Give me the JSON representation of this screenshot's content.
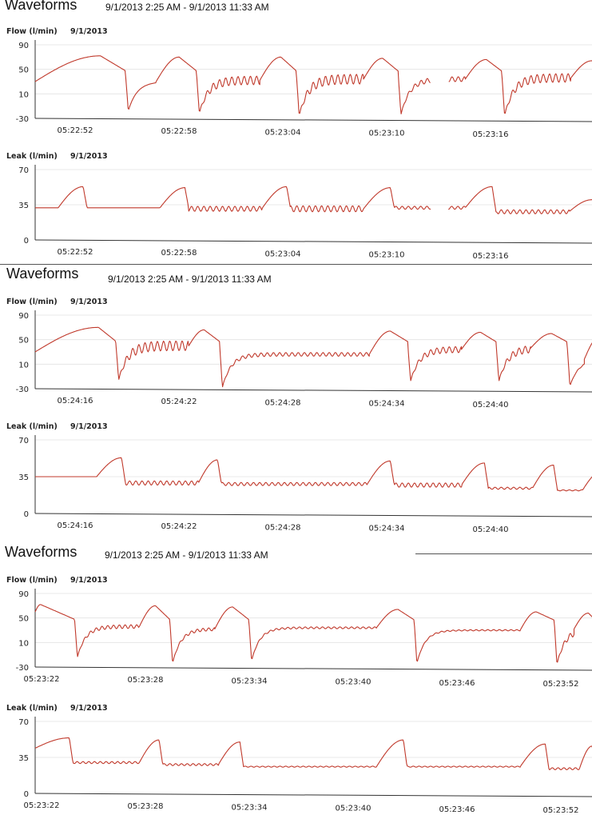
{
  "accent_color": "#c0392b",
  "pages": [
    {
      "title": "Waveforms",
      "range": "9/1/2013 2:25 AM - 9/1/2013 11:33 AM",
      "flow": {
        "label": "Flow (l/min)",
        "date": "9/1/2013",
        "yticks": [
          "90",
          "50",
          "10",
          "-30"
        ],
        "xticks": [
          "05:22:52",
          "05:22:58",
          "05:23:04",
          "05:23:10",
          "05:23:16"
        ]
      },
      "leak": {
        "label": "Leak (l/min)",
        "date": "9/1/2013",
        "yticks": [
          "70",
          "35",
          "0"
        ],
        "xticks": [
          "05:22:52",
          "05:22:58",
          "05:23:04",
          "05:23:10",
          "05:23:16"
        ]
      }
    },
    {
      "title": "Waveforms",
      "range": "9/1/2013 2:25 AM - 9/1/2013 11:33 AM",
      "flow": {
        "label": "Flow (l/min)",
        "date": "9/1/2013",
        "yticks": [
          "90",
          "50",
          "10",
          "-30"
        ],
        "xticks": [
          "05:24:16",
          "05:24:22",
          "05:24:28",
          "05:24:34",
          "05:24:40"
        ]
      },
      "leak": {
        "label": "Leak (l/min)",
        "date": "9/1/2013",
        "yticks": [
          "70",
          "35",
          "0"
        ],
        "xticks": [
          "05:24:16",
          "05:24:22",
          "05:24:28",
          "05:24:34",
          "05:24:40"
        ]
      }
    },
    {
      "title": "Waveforms",
      "range": "9/1/2013 2:25 AM - 9/1/2013 11:33 AM",
      "flow": {
        "label": "Flow (l/min)",
        "date": "9/1/2013",
        "yticks": [
          "90",
          "50",
          "10",
          "-30"
        ],
        "xticks": [
          "05:23:22",
          "05:23:28",
          "05:23:34",
          "05:23:40",
          "05:23:46",
          "05:23:52"
        ]
      },
      "leak": {
        "label": "Leak (l/min)",
        "date": "9/1/2013",
        "yticks": [
          "70",
          "35",
          "0"
        ],
        "xticks": [
          "05:23:22",
          "05:23:28",
          "05:23:34",
          "05:23:40",
          "05:23:46",
          "05:23:52"
        ]
      }
    }
  ],
  "chart_data": [
    {
      "type": "line",
      "panel": "page1-flow",
      "title": "Flow (l/min)",
      "ylabel": "Flow (l/min)",
      "ylim": [
        -30,
        90
      ],
      "grid": true,
      "xlim": [
        0,
        29
      ],
      "breaths": [
        {
          "start": 0.0,
          "peak": 3.4,
          "peak_value": 72,
          "drop": 4.7,
          "trough_value": -18,
          "plateau_value": 30,
          "ripple": 0
        },
        {
          "start": 6.3,
          "peak": 7.5,
          "peak_value": 70,
          "drop": 8.4,
          "trough_value": -22,
          "plateau_value": 32,
          "ripple": 14
        },
        {
          "start": 11.7,
          "peak": 12.8,
          "peak_value": 70,
          "drop": 13.6,
          "trough_value": -26,
          "plateau_value": 34,
          "ripple": 16
        },
        {
          "start": 17.1,
          "peak": 18.1,
          "peak_value": 68,
          "drop": 18.9,
          "trough_value": -24,
          "plateau_value": 34,
          "ripple": 8
        },
        {
          "start": 22.4,
          "peak": 23.5,
          "peak_value": 66,
          "drop": 24.3,
          "trough_value": -26,
          "plateau_value": 36,
          "ripple": 14
        },
        {
          "start": 27.9,
          "peak": 29.0,
          "peak_value": 64,
          "drop": 29.5,
          "trough_value": -20,
          "plateau_value": 30,
          "ripple": 0
        }
      ],
      "gaps": [
        [
          20.6,
          21.5
        ]
      ]
    },
    {
      "type": "line",
      "panel": "page1-leak",
      "title": "Leak (l/min)",
      "ylabel": "Leak (l/min)",
      "ylim": [
        0,
        70
      ],
      "grid": true,
      "xlim": [
        0,
        29
      ],
      "breaths": [
        {
          "start": 1.2,
          "peak": 2.5,
          "peak_value": 53,
          "end": 2.7,
          "baseline": 32,
          "ripple": 0
        },
        {
          "start": 6.5,
          "peak": 7.8,
          "peak_value": 52,
          "end": 8.0,
          "baseline": 31,
          "ripple": 5
        },
        {
          "start": 11.8,
          "peak": 13.1,
          "peak_value": 53,
          "end": 13.3,
          "baseline": 31,
          "ripple": 6
        },
        {
          "start": 17.1,
          "peak": 18.5,
          "peak_value": 52,
          "end": 18.7,
          "baseline": 32,
          "ripple": 3
        },
        {
          "start": 22.4,
          "peak": 23.8,
          "peak_value": 53,
          "end": 24.0,
          "baseline": 28,
          "ripple": 4
        },
        {
          "start": 27.8,
          "peak": 29.0,
          "peak_value": 40,
          "end": 29.5,
          "baseline": 28,
          "ripple": 0
        }
      ],
      "gaps": [
        [
          20.6,
          21.5
        ]
      ]
    },
    {
      "type": "line",
      "panel": "page2-flow",
      "title": "Flow (l/min)",
      "ylabel": "Flow (l/min)",
      "ylim": [
        -30,
        90
      ],
      "grid": true,
      "xlim": [
        0,
        29
      ],
      "breaths": [
        {
          "start": 0.0,
          "peak": 3.3,
          "peak_value": 70,
          "drop": 4.2,
          "trough_value": -16,
          "plateau_value": 40,
          "ripple": 16
        },
        {
          "start": 8.0,
          "peak": 8.8,
          "peak_value": 66,
          "drop": 9.6,
          "trough_value": -28,
          "plateau_value": 26,
          "ripple": 6
        },
        {
          "start": 17.4,
          "peak": 18.5,
          "peak_value": 64,
          "drop": 19.4,
          "trough_value": -18,
          "plateau_value": 34,
          "ripple": 10
        },
        {
          "start": 22.2,
          "peak": 23.2,
          "peak_value": 62,
          "drop": 24.0,
          "trough_value": -18,
          "plateau_value": 36,
          "ripple": 12
        },
        {
          "start": 25.8,
          "peak": 26.9,
          "peak_value": 60,
          "drop": 27.7,
          "trough_value": -26,
          "plateau_value": 18,
          "ripple": 2
        },
        {
          "start": 28.6,
          "peak": 29.4,
          "peak_value": 55,
          "drop": 29.6,
          "trough_value": 40,
          "plateau_value": 40,
          "ripple": 0
        }
      ],
      "gaps": []
    },
    {
      "type": "line",
      "panel": "page2-leak",
      "title": "Leak (l/min)",
      "ylabel": "Leak (l/min)",
      "ylim": [
        0,
        70
      ],
      "grid": true,
      "xlim": [
        0,
        29
      ],
      "breaths": [
        {
          "start": 3.2,
          "peak": 4.5,
          "peak_value": 53,
          "end": 4.7,
          "baseline": 29,
          "ripple": 4
        },
        {
          "start": 8.5,
          "peak": 9.5,
          "peak_value": 51,
          "end": 9.7,
          "baseline": 28,
          "ripple": 3
        },
        {
          "start": 17.3,
          "peak": 18.5,
          "peak_value": 50,
          "end": 18.7,
          "baseline": 27,
          "ripple": 4
        },
        {
          "start": 22.2,
          "peak": 23.4,
          "peak_value": 48,
          "end": 23.6,
          "baseline": 24,
          "ripple": 2
        },
        {
          "start": 25.9,
          "peak": 27.0,
          "peak_value": 46,
          "end": 27.2,
          "baseline": 22,
          "ripple": 1
        },
        {
          "start": 28.5,
          "peak": 29.5,
          "peak_value": 40,
          "end": 29.6,
          "baseline": 40,
          "ripple": 0
        }
      ],
      "start_level": 35,
      "gaps": []
    },
    {
      "type": "line",
      "panel": "page3-flow",
      "title": "Flow (l/min)",
      "ylabel": "Flow (l/min)",
      "ylim": [
        -30,
        90
      ],
      "grid": true,
      "xlim": [
        0,
        31
      ],
      "breaths": [
        {
          "start": 0.0,
          "peak": 0.3,
          "peak_value": 72,
          "drop": 2.2,
          "trough_value": -14,
          "plateau_value": 36,
          "ripple": 6
        },
        {
          "start": 5.8,
          "peak": 6.7,
          "peak_value": 70,
          "drop": 7.5,
          "trough_value": -24,
          "plateau_value": 32,
          "ripple": 5
        },
        {
          "start": 10.0,
          "peak": 11.0,
          "peak_value": 68,
          "drop": 11.9,
          "trough_value": -20,
          "plateau_value": 34,
          "ripple": 3
        },
        {
          "start": 19.0,
          "peak": 20.2,
          "peak_value": 64,
          "drop": 21.1,
          "trough_value": -24,
          "plateau_value": 30,
          "ripple": 2
        },
        {
          "start": 27.0,
          "peak": 27.9,
          "peak_value": 60,
          "drop": 28.9,
          "trough_value": -26,
          "plateau_value": 32,
          "ripple": 10
        },
        {
          "start": 30.0,
          "peak": 30.8,
          "peak_value": 58,
          "drop": 31.2,
          "trough_value": -26,
          "plateau_value": 30,
          "ripple": 0
        }
      ],
      "gaps": []
    },
    {
      "type": "line",
      "panel": "page3-leak",
      "title": "Leak (l/min)",
      "ylabel": "Leak (l/min)",
      "ylim": [
        0,
        70
      ],
      "grid": true,
      "xlim": [
        0,
        31
      ],
      "breaths": [
        {
          "start": 0.0,
          "peak": 1.9,
          "peak_value": 54,
          "end": 2.1,
          "baseline": 30,
          "ripple": 2
        },
        {
          "start": 5.8,
          "peak": 6.9,
          "peak_value": 52,
          "end": 7.1,
          "baseline": 28,
          "ripple": 2
        },
        {
          "start": 10.2,
          "peak": 11.4,
          "peak_value": 50,
          "end": 11.6,
          "baseline": 26,
          "ripple": 1
        },
        {
          "start": 19.0,
          "peak": 20.5,
          "peak_value": 52,
          "end": 20.7,
          "baseline": 26,
          "ripple": 1
        },
        {
          "start": 27.0,
          "peak": 28.4,
          "peak_value": 48,
          "end": 28.6,
          "baseline": 24,
          "ripple": 2
        },
        {
          "start": 30.3,
          "peak": 31.0,
          "peak_value": 46,
          "end": 31.2,
          "baseline": 30,
          "ripple": 0
        }
      ],
      "start_level": 44,
      "gaps": []
    }
  ]
}
